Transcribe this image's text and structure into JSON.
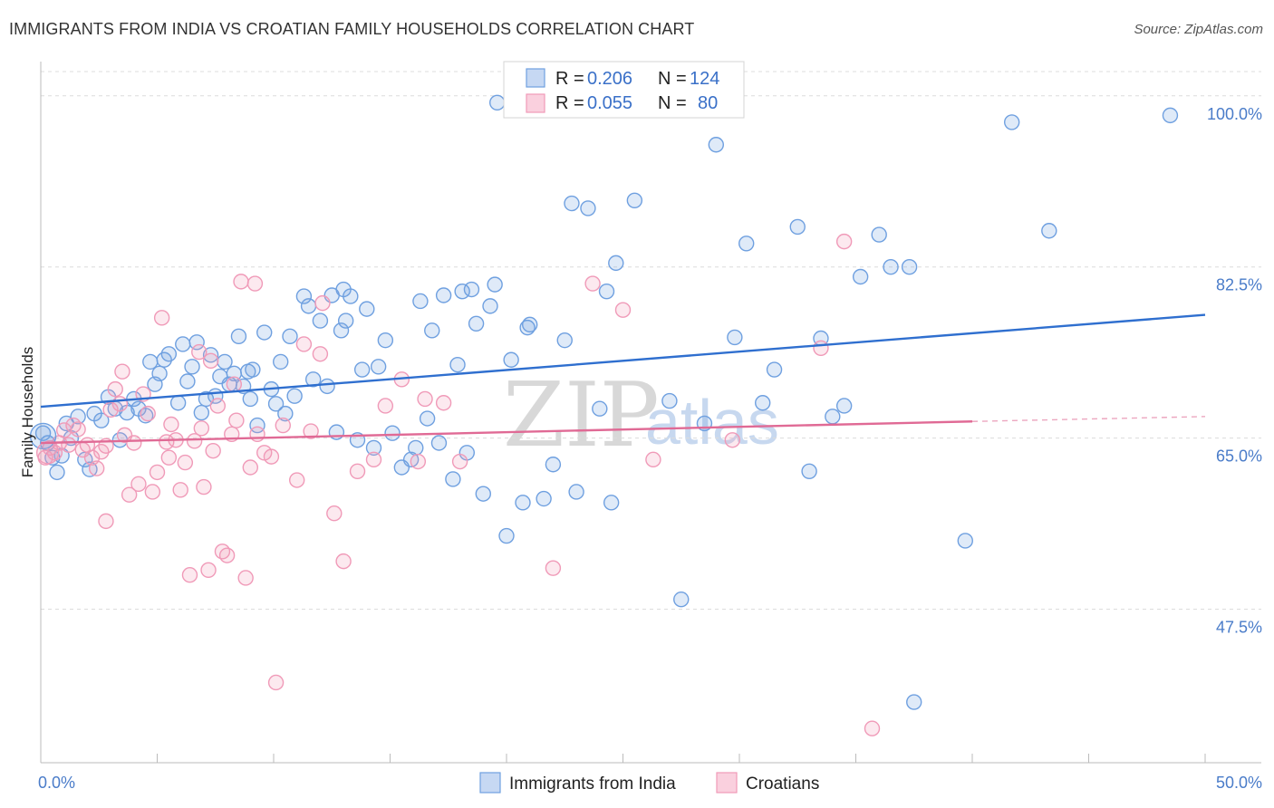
{
  "title": "IMMIGRANTS FROM INDIA VS CROATIAN FAMILY HOUSEHOLDS CORRELATION CHART",
  "source": "Source: ZipAtlas.com",
  "watermark": {
    "zip": "ZIP",
    "atlas": "atlas"
  },
  "chart_data": {
    "type": "scatter",
    "title": "IMMIGRANTS FROM INDIA VS CROATIAN FAMILY HOUSEHOLDS CORRELATION CHART",
    "xlabel": "",
    "ylabel": "Family Households",
    "xlim": [
      0,
      50
    ],
    "ylim": [
      31.8,
      103.5
    ],
    "x_tick_labels": [
      {
        "value": 0,
        "label": "0.0%"
      },
      {
        "value": 50,
        "label": "50.0%"
      }
    ],
    "y_ticks": [
      {
        "value": 47.5,
        "label": "47.5%"
      },
      {
        "value": 65.0,
        "label": "65.0%"
      },
      {
        "value": 82.5,
        "label": "82.5%"
      },
      {
        "value": 100.0,
        "label": "100.0%"
      }
    ],
    "legend": [
      {
        "r_label": "R =",
        "r_value": "0.206",
        "n_label": "N =",
        "n_value": "124"
      },
      {
        "r_label": "R =",
        "r_value": "0.055",
        "n_label": "N =",
        "n_value": "80"
      }
    ],
    "series": [
      {
        "name": "Immigrants from India",
        "color": "#6fa0e0",
        "line_color": "#2f6fcf",
        "trend": {
          "x0": 0,
          "y0": 68.2,
          "x1": 50,
          "y1": 77.6
        },
        "points": [
          [
            0.1,
            65.5
          ],
          [
            0.3,
            64.5
          ],
          [
            0.5,
            63.0
          ],
          [
            0.7,
            61.5
          ],
          [
            0.9,
            63.2
          ],
          [
            1.1,
            66.5
          ],
          [
            1.3,
            65.0
          ],
          [
            1.6,
            67.2
          ],
          [
            1.9,
            62.8
          ],
          [
            2.1,
            61.8
          ],
          [
            2.3,
            67.5
          ],
          [
            2.6,
            66.8
          ],
          [
            2.9,
            69.2
          ],
          [
            3.2,
            68.0
          ],
          [
            3.4,
            64.8
          ],
          [
            3.7,
            67.6
          ],
          [
            4.0,
            69.0
          ],
          [
            4.2,
            68.0
          ],
          [
            4.5,
            67.3
          ],
          [
            4.7,
            72.8
          ],
          [
            4.9,
            70.5
          ],
          [
            5.1,
            71.6
          ],
          [
            5.3,
            73.0
          ],
          [
            5.5,
            73.6
          ],
          [
            5.9,
            68.6
          ],
          [
            6.1,
            74.6
          ],
          [
            6.3,
            70.8
          ],
          [
            6.5,
            72.3
          ],
          [
            6.7,
            74.8
          ],
          [
            6.9,
            67.6
          ],
          [
            7.1,
            69.0
          ],
          [
            7.3,
            73.5
          ],
          [
            7.5,
            69.3
          ],
          [
            7.7,
            71.3
          ],
          [
            7.9,
            72.8
          ],
          [
            8.1,
            70.5
          ],
          [
            8.3,
            71.6
          ],
          [
            8.5,
            75.4
          ],
          [
            8.7,
            70.3
          ],
          [
            8.9,
            71.8
          ],
          [
            9.1,
            72.0
          ],
          [
            9.3,
            66.3
          ],
          [
            9.6,
            75.8
          ],
          [
            9.9,
            70.0
          ],
          [
            10.1,
            68.5
          ],
          [
            10.3,
            72.8
          ],
          [
            10.5,
            67.5
          ],
          [
            10.7,
            75.4
          ],
          [
            10.9,
            69.3
          ],
          [
            11.3,
            79.5
          ],
          [
            11.5,
            78.5
          ],
          [
            11.7,
            71.0
          ],
          [
            12.0,
            77.0
          ],
          [
            12.3,
            70.3
          ],
          [
            12.5,
            79.6
          ],
          [
            12.7,
            65.6
          ],
          [
            12.9,
            76.0
          ],
          [
            13.1,
            77.0
          ],
          [
            13.3,
            79.5
          ],
          [
            13.6,
            64.8
          ],
          [
            13.8,
            72.0
          ],
          [
            14.0,
            78.2
          ],
          [
            14.3,
            64.0
          ],
          [
            14.5,
            72.3
          ],
          [
            14.8,
            75.0
          ],
          [
            15.1,
            65.5
          ],
          [
            15.5,
            62.0
          ],
          [
            15.9,
            62.8
          ],
          [
            16.1,
            64.0
          ],
          [
            16.3,
            79.0
          ],
          [
            16.6,
            67.0
          ],
          [
            16.8,
            76.0
          ],
          [
            17.1,
            64.5
          ],
          [
            17.3,
            79.6
          ],
          [
            17.7,
            60.8
          ],
          [
            17.9,
            72.5
          ],
          [
            18.1,
            80.0
          ],
          [
            18.3,
            63.5
          ],
          [
            18.5,
            80.2
          ],
          [
            18.7,
            76.7
          ],
          [
            19.0,
            59.3
          ],
          [
            19.3,
            78.5
          ],
          [
            19.5,
            80.7
          ],
          [
            19.6,
            99.3
          ],
          [
            20.0,
            55.0
          ],
          [
            20.2,
            73.0
          ],
          [
            20.7,
            58.4
          ],
          [
            20.9,
            76.3
          ],
          [
            21.0,
            76.6
          ],
          [
            21.6,
            58.8
          ],
          [
            22.0,
            62.3
          ],
          [
            22.5,
            75.0
          ],
          [
            22.8,
            89.0
          ],
          [
            23.0,
            59.5
          ],
          [
            23.5,
            88.5
          ],
          [
            24.0,
            68.0
          ],
          [
            24.3,
            80.0
          ],
          [
            24.5,
            58.4
          ],
          [
            24.7,
            82.9
          ],
          [
            25.5,
            89.3
          ],
          [
            27.0,
            68.8
          ],
          [
            27.5,
            48.5
          ],
          [
            28.5,
            66.5
          ],
          [
            29.0,
            95.0
          ],
          [
            29.8,
            75.3
          ],
          [
            30.3,
            84.9
          ],
          [
            31.0,
            68.6
          ],
          [
            31.5,
            72.0
          ],
          [
            32.5,
            86.6
          ],
          [
            33.0,
            61.6
          ],
          [
            33.5,
            75.2
          ],
          [
            34.0,
            67.2
          ],
          [
            34.5,
            68.3
          ],
          [
            35.2,
            81.5
          ],
          [
            36.0,
            85.8
          ],
          [
            36.5,
            82.5
          ],
          [
            37.3,
            82.5
          ],
          [
            37.5,
            38.0
          ],
          [
            39.7,
            54.5
          ],
          [
            41.7,
            97.3
          ],
          [
            43.3,
            86.2
          ],
          [
            48.5,
            98.0
          ],
          [
            13.0,
            80.2
          ],
          [
            9.0,
            69.0
          ]
        ]
      },
      {
        "name": "Croatians",
        "color": "#f09ab8",
        "line_color": "#e06a95",
        "trend": {
          "x0": 0,
          "y0": 64.5,
          "x1": 40,
          "y1": 66.7
        },
        "trend_dashed_to": {
          "x": 50,
          "y": 67.2
        },
        "points": [
          [
            0.2,
            63.0
          ],
          [
            0.4,
            64.0
          ],
          [
            0.6,
            63.5
          ],
          [
            0.8,
            64.5
          ],
          [
            1.0,
            65.8
          ],
          [
            1.2,
            64.3
          ],
          [
            1.4,
            66.3
          ],
          [
            1.6,
            65.9
          ],
          [
            1.8,
            63.8
          ],
          [
            2.0,
            64.3
          ],
          [
            2.2,
            63.0
          ],
          [
            2.4,
            61.9
          ],
          [
            2.6,
            63.6
          ],
          [
            2.8,
            64.2
          ],
          [
            3.0,
            67.9
          ],
          [
            3.2,
            70.0
          ],
          [
            3.4,
            68.5
          ],
          [
            3.6,
            65.3
          ],
          [
            3.8,
            59.2
          ],
          [
            4.0,
            64.5
          ],
          [
            4.2,
            60.3
          ],
          [
            4.4,
            69.5
          ],
          [
            4.6,
            67.5
          ],
          [
            4.8,
            59.5
          ],
          [
            5.0,
            61.5
          ],
          [
            5.2,
            77.3
          ],
          [
            5.4,
            64.6
          ],
          [
            5.6,
            66.4
          ],
          [
            5.8,
            64.8
          ],
          [
            6.0,
            59.7
          ],
          [
            6.2,
            62.5
          ],
          [
            6.4,
            51.0
          ],
          [
            6.6,
            64.7
          ],
          [
            6.8,
            73.8
          ],
          [
            7.0,
            60.0
          ],
          [
            7.2,
            51.5
          ],
          [
            7.4,
            63.7
          ],
          [
            7.6,
            68.3
          ],
          [
            7.8,
            53.4
          ],
          [
            8.0,
            53.0
          ],
          [
            8.2,
            65.4
          ],
          [
            8.4,
            66.8
          ],
          [
            8.6,
            81.0
          ],
          [
            8.8,
            50.7
          ],
          [
            9.0,
            62.0
          ],
          [
            9.2,
            80.8
          ],
          [
            9.6,
            63.5
          ],
          [
            9.9,
            63.1
          ],
          [
            10.1,
            40.0
          ],
          [
            11.0,
            60.7
          ],
          [
            11.3,
            74.6
          ],
          [
            11.6,
            65.7
          ],
          [
            12.1,
            78.8
          ],
          [
            12.6,
            57.3
          ],
          [
            13.0,
            52.4
          ],
          [
            13.6,
            61.6
          ],
          [
            14.3,
            62.8
          ],
          [
            14.8,
            68.3
          ],
          [
            15.5,
            71.0
          ],
          [
            16.2,
            62.6
          ],
          [
            17.3,
            68.6
          ],
          [
            18.0,
            62.6
          ],
          [
            22.0,
            51.7
          ],
          [
            23.7,
            80.8
          ],
          [
            25.0,
            78.1
          ],
          [
            26.3,
            62.8
          ],
          [
            29.7,
            64.8
          ],
          [
            33.5,
            74.2
          ],
          [
            34.5,
            85.1
          ],
          [
            35.7,
            35.3
          ],
          [
            5.5,
            63.0
          ],
          [
            6.9,
            66.0
          ],
          [
            8.3,
            70.5
          ],
          [
            9.3,
            65.4
          ],
          [
            10.4,
            66.3
          ],
          [
            12.0,
            73.6
          ],
          [
            16.5,
            69.0
          ],
          [
            3.5,
            71.8
          ],
          [
            7.3,
            72.9
          ],
          [
            2.8,
            56.5
          ]
        ]
      }
    ]
  }
}
